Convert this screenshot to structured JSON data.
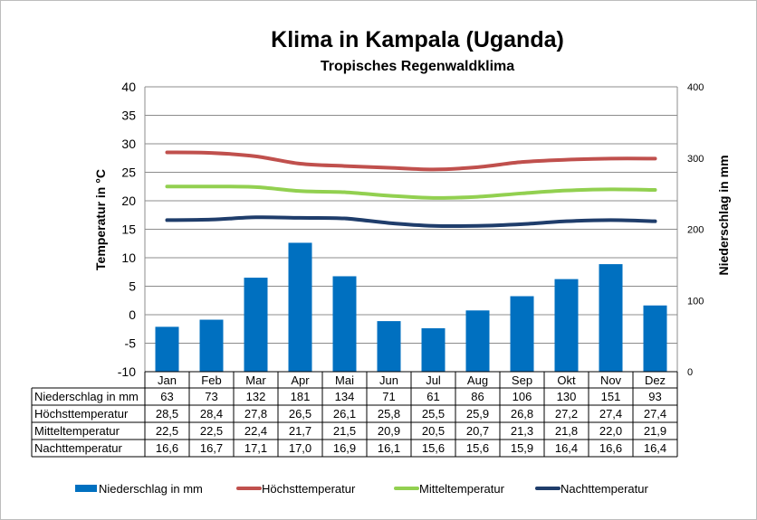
{
  "chart_data": {
    "type": "bar+line",
    "title": "Klima in Kampala (Uganda)",
    "subtitle": "Tropisches Regenwaldklima",
    "ylabel_left": "Temperatur in °C",
    "ylabel_right": "Niederschlag in mm",
    "ylim_left": [
      -10,
      40
    ],
    "yticks_left": [
      "-10",
      "-5",
      "0",
      "5",
      "10",
      "15",
      "20",
      "25",
      "30",
      "35",
      "40"
    ],
    "ylim_right": [
      0,
      400
    ],
    "yticks_right": [
      "0",
      "100",
      "200",
      "300",
      "400"
    ],
    "grid": true,
    "legend_placement": "bottom",
    "categories": [
      "Jan",
      "Feb",
      "Mar",
      "Apr",
      "Mai",
      "Jun",
      "Jul",
      "Aug",
      "Sep",
      "Okt",
      "Nov",
      "Dez"
    ],
    "series": [
      {
        "name": "Niederschlag in mm",
        "type": "bar",
        "axis": "right",
        "color": "#0070C0",
        "values": [
          63,
          73,
          132,
          181,
          134,
          71,
          61,
          86,
          106,
          130,
          151,
          93
        ],
        "labels": [
          "63",
          "73",
          "132",
          "181",
          "134",
          "71",
          "61",
          "86",
          "106",
          "130",
          "151",
          "93"
        ]
      },
      {
        "name": "Höchsttemperatur",
        "type": "line",
        "axis": "left",
        "color": "#C0504D",
        "values": [
          28.5,
          28.4,
          27.8,
          26.5,
          26.1,
          25.8,
          25.5,
          25.9,
          26.8,
          27.2,
          27.4,
          27.4
        ],
        "labels": [
          "28,5",
          "28,4",
          "27,8",
          "26,5",
          "26,1",
          "25,8",
          "25,5",
          "25,9",
          "26,8",
          "27,2",
          "27,4",
          "27,4"
        ]
      },
      {
        "name": "Mitteltemperatur",
        "type": "line",
        "axis": "left",
        "color": "#92D050",
        "values": [
          22.5,
          22.5,
          22.4,
          21.7,
          21.5,
          20.9,
          20.5,
          20.7,
          21.3,
          21.8,
          22.0,
          21.9
        ],
        "labels": [
          "22,5",
          "22,5",
          "22,4",
          "21,7",
          "21,5",
          "20,9",
          "20,5",
          "20,7",
          "21,3",
          "21,8",
          "22,0",
          "21,9"
        ]
      },
      {
        "name": "Nachttemperatur",
        "type": "line",
        "axis": "left",
        "color": "#1F3D6B",
        "values": [
          16.6,
          16.7,
          17.1,
          17.0,
          16.9,
          16.1,
          15.6,
          15.6,
          15.9,
          16.4,
          16.6,
          16.4
        ],
        "labels": [
          "16,6",
          "16,7",
          "17,1",
          "17,0",
          "16,9",
          "16,1",
          "15,6",
          "15,6",
          "15,9",
          "16,4",
          "16,6",
          "16,4"
        ]
      }
    ]
  }
}
